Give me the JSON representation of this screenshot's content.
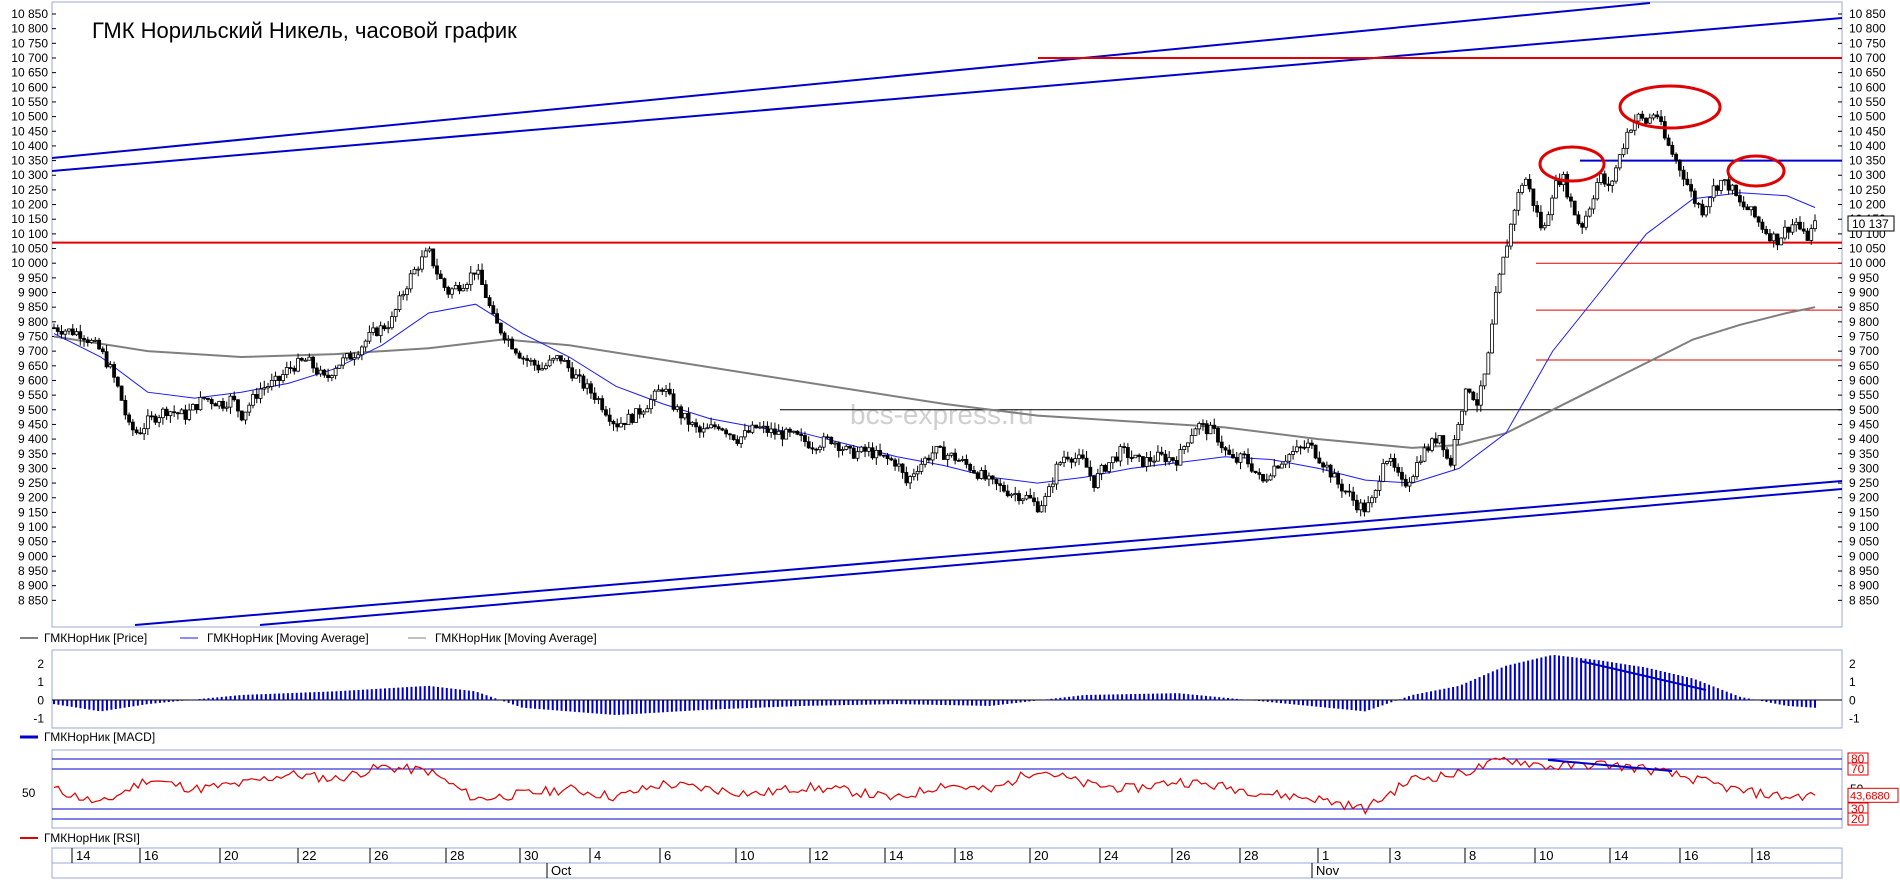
{
  "chart_data": [
    {
      "type": "candlestick",
      "title": "ГМК Норильский Никель, часовой график",
      "watermark": "bcs-express.ru",
      "ylim": [
        8800,
        10850
      ],
      "y_ticks": [
        "10 850",
        "10 800",
        "10 750",
        "10 700",
        "10 650",
        "10 600",
        "10 550",
        "10 500",
        "10 450",
        "10 400",
        "10 350",
        "10 300",
        "10 250",
        "10 200",
        "10 150",
        "10 100",
        "10 050",
        "10 000",
        "9 950",
        "9 900",
        "9 850",
        "9 800",
        "9 750",
        "9 700",
        "9 650",
        "9 600",
        "9 550",
        "9 500",
        "9 450",
        "9 400",
        "9 350",
        "9 300",
        "9 250",
        "9 200",
        "9 150",
        "9 100",
        "9 050",
        "9 000",
        "8 950",
        "8 900",
        "8 850"
      ],
      "last_price_label": "10 137",
      "price_path": [
        [
          0,
          9780
        ],
        [
          3,
          9760
        ],
        [
          5,
          9700
        ],
        [
          6,
          9640
        ],
        [
          7,
          9560
        ],
        [
          8,
          9440
        ],
        [
          9,
          9420
        ],
        [
          10,
          9460
        ],
        [
          12,
          9500
        ],
        [
          14,
          9480
        ],
        [
          16,
          9540
        ],
        [
          18,
          9520
        ],
        [
          19,
          9540
        ],
        [
          20,
          9480
        ],
        [
          22,
          9570
        ],
        [
          24,
          9600
        ],
        [
          25,
          9640
        ],
        [
          27,
          9670
        ],
        [
          29,
          9600
        ],
        [
          30,
          9650
        ],
        [
          32,
          9690
        ],
        [
          34,
          9760
        ],
        [
          36,
          9800
        ],
        [
          37,
          9880
        ],
        [
          38,
          9950
        ],
        [
          39,
          10000
        ],
        [
          40,
          10040
        ],
        [
          41,
          9960
        ],
        [
          42,
          9900
        ],
        [
          44,
          9940
        ],
        [
          45,
          9980
        ],
        [
          46,
          9900
        ],
        [
          47,
          9800
        ],
        [
          48,
          9760
        ],
        [
          50,
          9680
        ],
        [
          52,
          9640
        ],
        [
          54,
          9680
        ],
        [
          56,
          9600
        ],
        [
          58,
          9540
        ],
        [
          60,
          9450
        ],
        [
          62,
          9480
        ],
        [
          64,
          9540
        ],
        [
          65,
          9580
        ],
        [
          66,
          9520
        ],
        [
          67,
          9480
        ],
        [
          69,
          9420
        ],
        [
          71,
          9450
        ],
        [
          73,
          9400
        ],
        [
          75,
          9440
        ],
        [
          77,
          9420
        ],
        [
          79,
          9410
        ],
        [
          81,
          9380
        ],
        [
          83,
          9400
        ],
        [
          85,
          9350
        ],
        [
          87,
          9360
        ],
        [
          88,
          9340
        ],
        [
          90,
          9320
        ],
        [
          91,
          9250
        ],
        [
          92,
          9300
        ],
        [
          94,
          9360
        ],
        [
          96,
          9340
        ],
        [
          98,
          9300
        ],
        [
          100,
          9250
        ],
        [
          102,
          9220
        ],
        [
          104,
          9200
        ],
        [
          105,
          9170
        ],
        [
          106,
          9200
        ],
        [
          107,
          9300
        ],
        [
          108,
          9350
        ],
        [
          110,
          9320
        ],
        [
          111,
          9250
        ],
        [
          112,
          9300
        ],
        [
          114,
          9360
        ],
        [
          116,
          9320
        ],
        [
          118,
          9340
        ],
        [
          120,
          9330
        ],
        [
          121,
          9400
        ],
        [
          122,
          9450
        ],
        [
          124,
          9420
        ],
        [
          125,
          9360
        ],
        [
          126,
          9320
        ],
        [
          127,
          9340
        ],
        [
          128,
          9300
        ],
        [
          129,
          9250
        ],
        [
          130,
          9300
        ],
        [
          132,
          9350
        ],
        [
          134,
          9380
        ],
        [
          135,
          9340
        ],
        [
          136,
          9300
        ],
        [
          137,
          9250
        ],
        [
          138,
          9220
        ],
        [
          139,
          9180
        ],
        [
          140,
          9160
        ],
        [
          141,
          9200
        ],
        [
          142,
          9350
        ],
        [
          143,
          9300
        ],
        [
          144,
          9240
        ],
        [
          145,
          9280
        ],
        [
          146,
          9350
        ],
        [
          147,
          9380
        ],
        [
          148,
          9420
        ],
        [
          149,
          9300
        ],
        [
          150,
          9480
        ],
        [
          151,
          9580
        ],
        [
          152,
          9520
        ],
        [
          153,
          9650
        ],
        [
          154,
          9900
        ],
        [
          155,
          10050
        ],
        [
          156,
          10200
        ],
        [
          157,
          10300
        ],
        [
          158,
          10200
        ],
        [
          159,
          10100
        ],
        [
          160,
          10250
        ],
        [
          161,
          10300
        ],
        [
          162,
          10200
        ],
        [
          163,
          10120
        ],
        [
          164,
          10200
        ],
        [
          165,
          10300
        ],
        [
          166,
          10250
        ],
        [
          167,
          10350
        ],
        [
          168,
          10450
        ],
        [
          169,
          10500
        ],
        [
          170,
          10480
        ],
        [
          171,
          10520
        ],
        [
          172,
          10420
        ],
        [
          173,
          10360
        ],
        [
          174,
          10300
        ],
        [
          175,
          10220
        ],
        [
          176,
          10180
        ],
        [
          177,
          10250
        ],
        [
          178,
          10280
        ],
        [
          179,
          10260
        ],
        [
          180,
          10200
        ],
        [
          181,
          10180
        ],
        [
          182,
          10140
        ],
        [
          183,
          10100
        ],
        [
          184,
          10080
        ],
        [
          185,
          10120
        ],
        [
          186,
          10140
        ],
        [
          187,
          10080
        ],
        [
          188,
          10130
        ]
      ],
      "sma_fast": [
        [
          0,
          9760
        ],
        [
          5,
          9680
        ],
        [
          10,
          9560
        ],
        [
          15,
          9540
        ],
        [
          20,
          9560
        ],
        [
          25,
          9590
        ],
        [
          30,
          9640
        ],
        [
          35,
          9720
        ],
        [
          40,
          9830
        ],
        [
          45,
          9860
        ],
        [
          50,
          9760
        ],
        [
          55,
          9680
        ],
        [
          60,
          9580
        ],
        [
          65,
          9520
        ],
        [
          70,
          9470
        ],
        [
          75,
          9440
        ],
        [
          80,
          9420
        ],
        [
          85,
          9380
        ],
        [
          90,
          9340
        ],
        [
          95,
          9310
        ],
        [
          100,
          9270
        ],
        [
          105,
          9250
        ],
        [
          110,
          9270
        ],
        [
          115,
          9300
        ],
        [
          120,
          9320
        ],
        [
          125,
          9340
        ],
        [
          130,
          9330
        ],
        [
          135,
          9300
        ],
        [
          140,
          9260
        ],
        [
          145,
          9250
        ],
        [
          150,
          9300
        ],
        [
          155,
          9420
        ],
        [
          160,
          9700
        ],
        [
          165,
          9900
        ],
        [
          170,
          10100
        ],
        [
          175,
          10220
        ],
        [
          180,
          10240
        ],
        [
          185,
          10230
        ],
        [
          188,
          10190
        ]
      ],
      "sma_slow": [
        [
          0,
          9750
        ],
        [
          10,
          9700
        ],
        [
          20,
          9680
        ],
        [
          30,
          9690
        ],
        [
          40,
          9710
        ],
        [
          48,
          9740
        ],
        [
          55,
          9720
        ],
        [
          65,
          9670
        ],
        [
          75,
          9620
        ],
        [
          85,
          9570
        ],
        [
          95,
          9520
        ],
        [
          105,
          9480
        ],
        [
          115,
          9460
        ],
        [
          125,
          9440
        ],
        [
          135,
          9400
        ],
        [
          145,
          9370
        ],
        [
          150,
          9380
        ],
        [
          155,
          9420
        ],
        [
          160,
          9500
        ],
        [
          165,
          9580
        ],
        [
          170,
          9660
        ],
        [
          175,
          9740
        ],
        [
          180,
          9790
        ],
        [
          185,
          9830
        ],
        [
          188,
          9850
        ]
      ],
      "red_levels": [
        10700,
        10070,
        10000,
        9840,
        9670
      ],
      "black_level": 9500,
      "blue_level": 10350,
      "legend": [
        {
          "name": "ГМКНорНик [Price]",
          "color": "#000000"
        },
        {
          "name": "ГМКНорНик [Moving Average]",
          "color": "#1a1aff"
        },
        {
          "name": "ГМКНорНик [Moving Average]",
          "color": "#808080"
        }
      ],
      "colors": {
        "price": "#000000",
        "sma_fast": "#1a1aff",
        "sma_slow": "#7f7f7f",
        "trend": "#0000cc",
        "level": "#e00000"
      }
    },
    {
      "type": "bar",
      "name": "ГМКНорНик [MACD]",
      "y_ticks": [
        "2",
        "1",
        "0",
        "-1"
      ],
      "ylim": [
        -1.4,
        2.6
      ],
      "envelope": [
        [
          0,
          -0.2
        ],
        [
          5,
          -0.6
        ],
        [
          10,
          -0.2
        ],
        [
          20,
          0.3
        ],
        [
          30,
          0.5
        ],
        [
          40,
          0.8
        ],
        [
          45,
          0.5
        ],
        [
          50,
          -0.4
        ],
        [
          60,
          -0.8
        ],
        [
          70,
          -0.5
        ],
        [
          80,
          -0.3
        ],
        [
          90,
          -0.2
        ],
        [
          100,
          -0.3
        ],
        [
          110,
          0.3
        ],
        [
          120,
          0.4
        ],
        [
          130,
          -0.1
        ],
        [
          140,
          -0.6
        ],
        [
          145,
          0.3
        ],
        [
          150,
          0.8
        ],
        [
          155,
          1.9
        ],
        [
          160,
          2.5
        ],
        [
          165,
          2.2
        ],
        [
          170,
          1.8
        ],
        [
          175,
          1.2
        ],
        [
          180,
          0.2
        ],
        [
          185,
          -0.3
        ],
        [
          188,
          -0.4
        ]
      ],
      "color": "#0000cc"
    },
    {
      "type": "line",
      "name": "ГМКНорНик [RSI]",
      "y_label": "50",
      "right_labels": [
        "80",
        "70",
        "50",
        "30",
        "20"
      ],
      "last_value": "43,6880",
      "levels": [
        80,
        70,
        30,
        20
      ],
      "ylim": [
        15,
        85
      ],
      "path": [
        [
          0,
          50
        ],
        [
          5,
          35
        ],
        [
          10,
          60
        ],
        [
          15,
          50
        ],
        [
          20,
          55
        ],
        [
          25,
          65
        ],
        [
          30,
          60
        ],
        [
          35,
          72
        ],
        [
          40,
          68
        ],
        [
          45,
          40
        ],
        [
          50,
          45
        ],
        [
          55,
          50
        ],
        [
          60,
          42
        ],
        [
          65,
          55
        ],
        [
          70,
          50
        ],
        [
          75,
          45
        ],
        [
          80,
          52
        ],
        [
          85,
          48
        ],
        [
          90,
          40
        ],
        [
          95,
          55
        ],
        [
          100,
          48
        ],
        [
          105,
          70
        ],
        [
          110,
          55
        ],
        [
          115,
          50
        ],
        [
          120,
          58
        ],
        [
          125,
          52
        ],
        [
          130,
          45
        ],
        [
          135,
          40
        ],
        [
          140,
          30
        ],
        [
          145,
          60
        ],
        [
          150,
          65
        ],
        [
          155,
          80
        ],
        [
          160,
          72
        ],
        [
          165,
          75
        ],
        [
          170,
          70
        ],
        [
          175,
          60
        ],
        [
          180,
          48
        ],
        [
          185,
          42
        ],
        [
          188,
          44
        ]
      ],
      "color": "#e00000"
    }
  ],
  "x_axis": {
    "day_labels": [
      "14",
      "16",
      "20",
      "22",
      "26",
      "28",
      "30",
      "4",
      "6",
      "10",
      "12",
      "14",
      "18",
      "20",
      "24",
      "26",
      "28",
      "1",
      "3",
      "8",
      "10",
      "14",
      "16",
      "18"
    ],
    "month_labels": [
      "Oct",
      "Nov"
    ]
  }
}
